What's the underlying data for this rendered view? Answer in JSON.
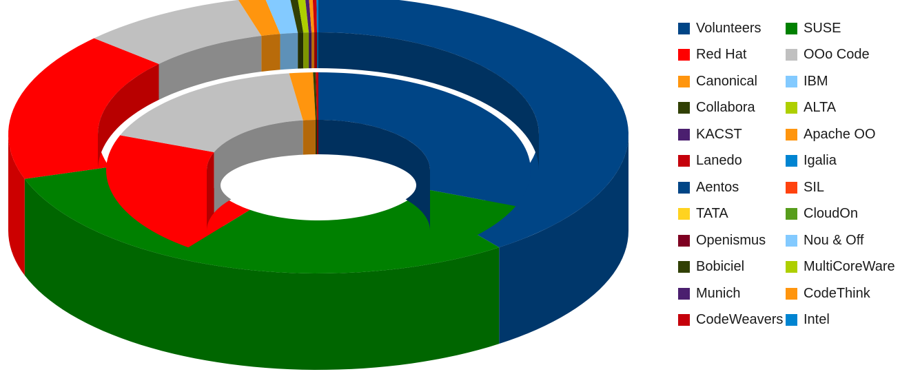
{
  "chart_data": {
    "type": "pie",
    "variant": "3d-double-ring-donut",
    "legend_placement": "right",
    "series": [
      {
        "ring": "outer",
        "categories": [
          "Volunteers",
          "SUSE",
          "Red Hat",
          "OOo Code",
          "Canonical",
          "IBM",
          "Collabora",
          "ALTA",
          "KACST",
          "Apache OO",
          "Lanedo",
          "Igalia"
        ],
        "values": [
          40.5,
          30.0,
          17.5,
          8.8,
          1.4,
          1.3,
          0.4,
          0.4,
          0.2,
          0.2,
          0.2,
          0.1
        ]
      },
      {
        "ring": "inner",
        "categories": [
          "Volunteers",
          "SUSE",
          "Red Hat",
          "OOo Code",
          "Canonical",
          "Collabora",
          "Lanedo"
        ],
        "values": [
          31.0,
          29.5,
          20.3,
          17.0,
          1.8,
          0.2,
          0.2
        ]
      }
    ],
    "legend": [
      {
        "label": "Volunteers",
        "color": "#004586"
      },
      {
        "label": "SUSE",
        "color": "#008000"
      },
      {
        "label": "Red Hat",
        "color": "#ff0000"
      },
      {
        "label": "OOo Code",
        "color": "#c0c0c0"
      },
      {
        "label": "Canonical",
        "color": "#ff950e"
      },
      {
        "label": "IBM",
        "color": "#83caff"
      },
      {
        "label": "Collabora",
        "color": "#314004"
      },
      {
        "label": "ALTA",
        "color": "#aecf00"
      },
      {
        "label": "KACST",
        "color": "#4b1f6f"
      },
      {
        "label": "Apache OO",
        "color": "#ff950e"
      },
      {
        "label": "Lanedo",
        "color": "#c5000b"
      },
      {
        "label": "Igalia",
        "color": "#0084d1"
      },
      {
        "label": "Aentos",
        "color": "#004586"
      },
      {
        "label": "SIL",
        "color": "#ff420e"
      },
      {
        "label": "TATA",
        "color": "#ffd320"
      },
      {
        "label": "CloudOn",
        "color": "#579d1c"
      },
      {
        "label": "Openismus",
        "color": "#7e0021"
      },
      {
        "label": "Nou & Off",
        "color": "#83caff"
      },
      {
        "label": "Bobiciel",
        "color": "#314004"
      },
      {
        "label": "MultiCoreWare",
        "color": "#aecf00"
      },
      {
        "label": "Munich",
        "color": "#4b1f6f"
      },
      {
        "label": "CodeThink",
        "color": "#ff950e"
      },
      {
        "label": "CodeWeavers",
        "color": "#c5000b"
      },
      {
        "label": "Intel",
        "color": "#0084d1"
      }
    ]
  }
}
